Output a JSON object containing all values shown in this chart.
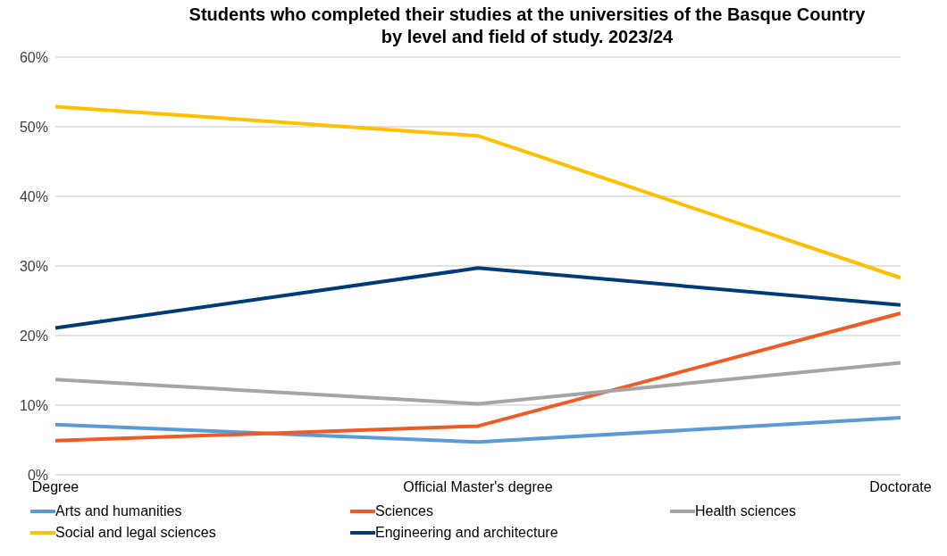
{
  "chart_data": {
    "type": "line",
    "title": "Students who completed their studies at the universities of the Basque Country\nby level and field of study. 2023/24",
    "categories": [
      "Degree",
      "Official Master's degree",
      "Doctorate"
    ],
    "series": [
      {
        "name": "Arts and humanities",
        "color": "#5b9bd5",
        "values": [
          7.2,
          4.7,
          8.2
        ]
      },
      {
        "name": "Sciences",
        "color": "#f15a24",
        "values": [
          4.9,
          7.0,
          23.2
        ]
      },
      {
        "name": "Health sciences",
        "color": "#a5a5a5",
        "values": [
          13.7,
          10.2,
          16.1
        ]
      },
      {
        "name": "Social and legal sciences",
        "color": "#ffc000",
        "values": [
          52.9,
          48.7,
          28.3
        ]
      },
      {
        "name": "Engineering and architecture",
        "color": "#003a78",
        "values": [
          21.1,
          29.7,
          24.4
        ]
      }
    ],
    "ylim": [
      0,
      60
    ],
    "yticks": [
      {
        "value": 0,
        "label": "0%"
      },
      {
        "value": 10,
        "label": "10%"
      },
      {
        "value": 20,
        "label": "20%"
      },
      {
        "value": 30,
        "label": "30%"
      },
      {
        "value": 40,
        "label": "40%"
      },
      {
        "value": 50,
        "label": "50%"
      },
      {
        "value": 60,
        "label": "60%"
      }
    ],
    "grid": "y",
    "legend": "bottom",
    "marker": "none",
    "line_style": "solid"
  }
}
